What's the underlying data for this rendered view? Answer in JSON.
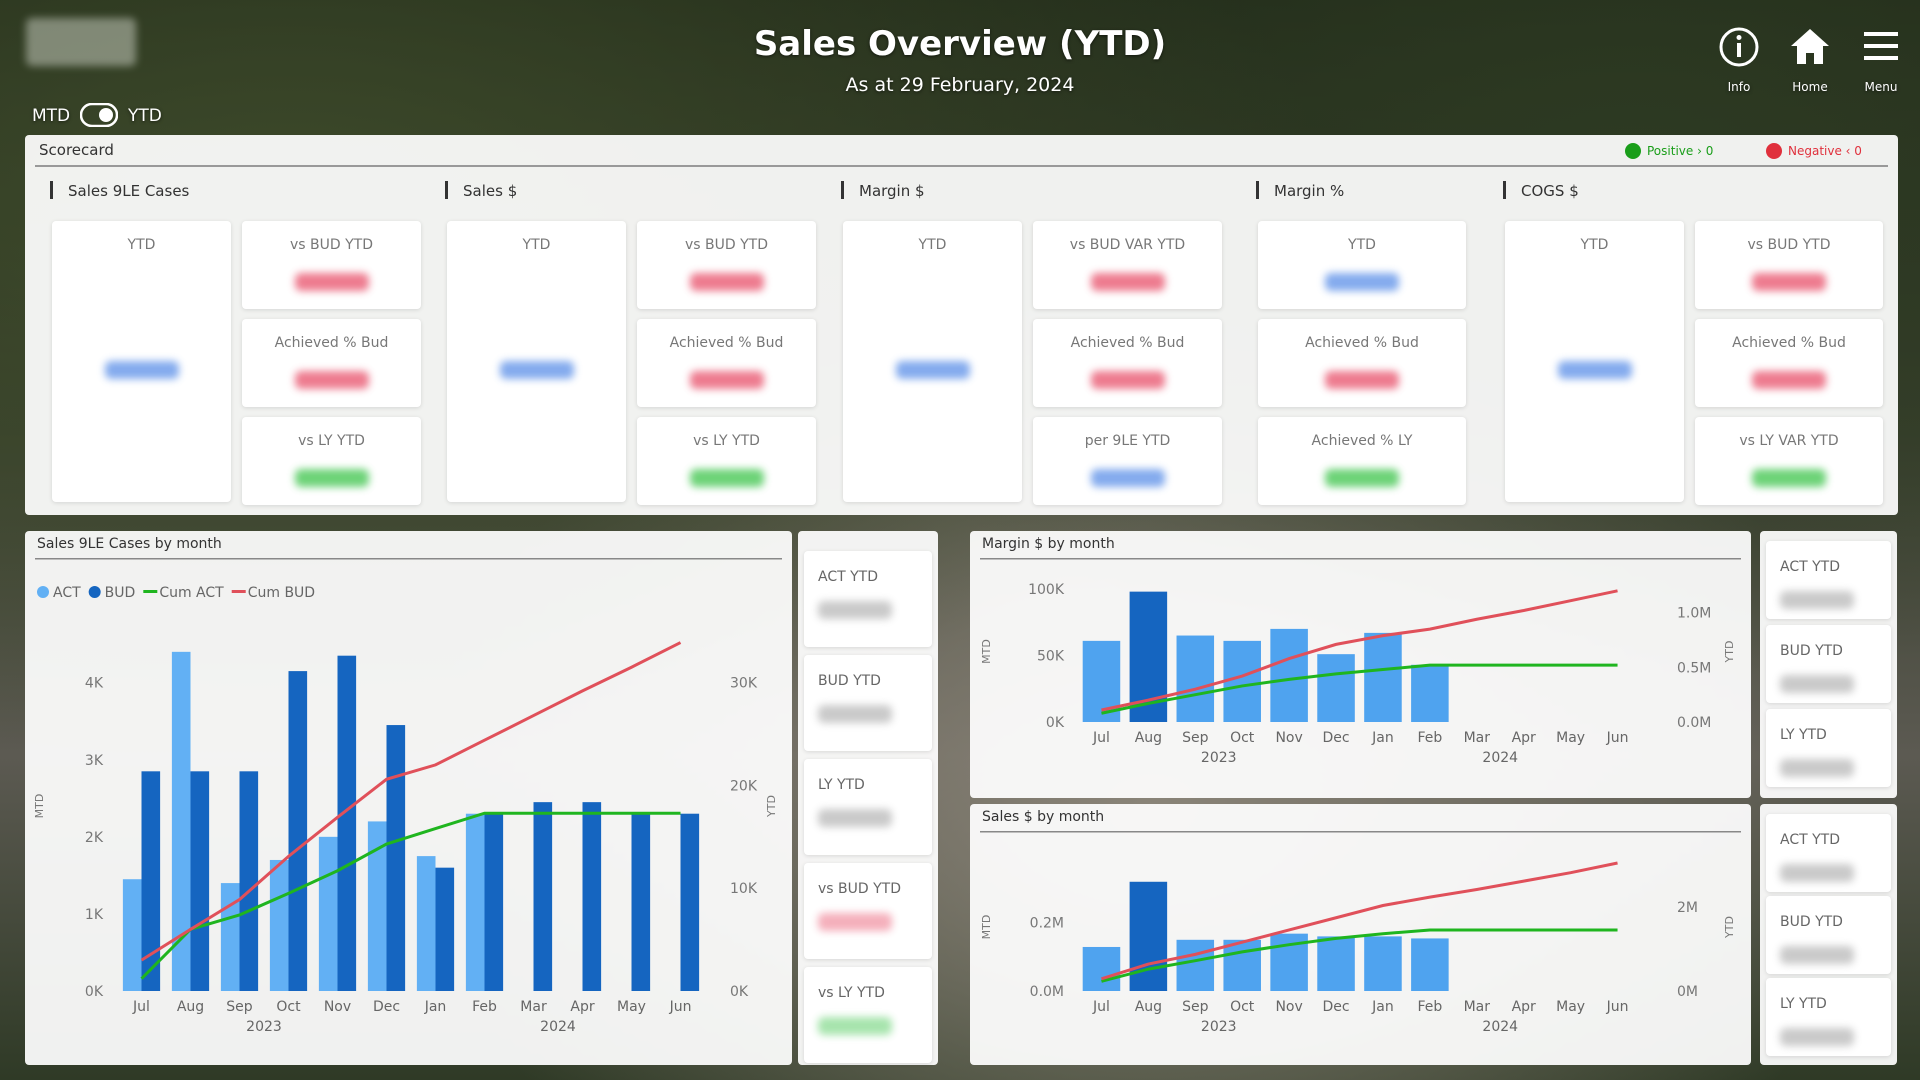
{
  "header": {
    "title": "Sales Overview (YTD)",
    "subtitle": "As at 29 February, 2024",
    "toggle": [
      "MTD",
      "YTD"
    ],
    "nav": [
      "Info",
      "Home",
      "Menu"
    ]
  },
  "scorecard": {
    "title": "Scorecard",
    "legend": [
      {
        "label": "Positive › 0",
        "color": "#1a9e1a"
      },
      {
        "label": "Negative ‹ 0",
        "color": "#e0303c"
      }
    ],
    "groups": [
      {
        "title": "Sales 9LE Cases",
        "tiles": [
          "YTD",
          "vs BUD YTD",
          "Achieved % Bud",
          "vs LY YTD"
        ]
      },
      {
        "title": "Sales $",
        "tiles": [
          "YTD",
          "vs BUD YTD",
          "Achieved % Bud",
          "vs LY YTD"
        ]
      },
      {
        "title": "Margin $",
        "tiles": [
          "YTD",
          "vs BUD VAR YTD",
          "Achieved % Bud",
          "per 9LE YTD"
        ]
      },
      {
        "title": "Margin %",
        "tiles": [
          "YTD",
          "Achieved % Bud",
          "Achieved % LY"
        ]
      },
      {
        "title": "COGS $",
        "tiles": [
          "YTD",
          "vs BUD YTD",
          "Achieved % Bud",
          "vs LY VAR YTD"
        ]
      }
    ]
  },
  "kpi_panels": [
    [
      "ACT YTD",
      "BUD YTD",
      "LY YTD",
      "vs BUD YTD",
      "vs LY YTD"
    ],
    [
      "ACT YTD",
      "BUD YTD",
      "LY YTD"
    ],
    [
      "ACT YTD",
      "BUD YTD",
      "LY YTD"
    ]
  ],
  "chart_data": [
    {
      "type": "combo",
      "title": "Sales 9LE Cases by month",
      "y_label": "MTD",
      "y2_label": "YTD",
      "legend": true,
      "category_groups": [
        {
          "label": "2023",
          "months": [
            "Jul",
            "Aug",
            "Sep",
            "Oct",
            "Nov",
            "Dec"
          ]
        },
        {
          "label": "2024",
          "months": [
            "Jan",
            "Feb",
            "Mar",
            "Apr",
            "May",
            "Jun"
          ]
        }
      ],
      "series": [
        {
          "name": "ACT",
          "color": "#62b0f4",
          "values": [
            1450,
            4400,
            1400,
            1700,
            2000,
            2200,
            1750,
            2300,
            null,
            null,
            null,
            null
          ]
        },
        {
          "name": "BUD",
          "color": "#1565c0",
          "values": [
            2850,
            2850,
            2850,
            4150,
            4350,
            3450,
            1600,
            2300,
            2450,
            2450,
            2300,
            2300
          ]
        },
        {
          "name": "Cum ACT",
          "color": "#1fb51f",
          "type": "line",
          "axis": "y2",
          "values": [
            1200,
            6000,
            7400,
            9500,
            11700,
            14300,
            15800,
            17300,
            17300,
            17300,
            17300,
            17300
          ]
        },
        {
          "name": "Cum BUD",
          "color": "#e0505a",
          "type": "line",
          "axis": "y2",
          "values": [
            3000,
            6000,
            8900,
            13100,
            16900,
            20600,
            22000,
            24400,
            26800,
            29200,
            31500,
            33900
          ]
        }
      ],
      "ylim": [
        0,
        4800
      ],
      "yticks": [
        {
          "value": 0,
          "label": "0K"
        },
        {
          "value": 1000,
          "label": "1K"
        },
        {
          "value": 2000,
          "label": "2K"
        },
        {
          "value": 3000,
          "label": "3K"
        },
        {
          "value": 4000,
          "label": "4K"
        }
      ],
      "y2lim": [
        0,
        36000
      ],
      "y2ticks": [
        {
          "value": 0,
          "label": "0K"
        },
        {
          "value": 10000,
          "label": "10K"
        },
        {
          "value": 20000,
          "label": "20K"
        },
        {
          "value": 30000,
          "label": "30K"
        }
      ]
    },
    {
      "type": "combo",
      "title": "Margin $ by month",
      "y_label": "MTD",
      "y2_label": "YTD",
      "legend": false,
      "category_groups": [
        {
          "label": "2023",
          "months": [
            "Jul",
            "Aug",
            "Sep",
            "Oct",
            "Nov",
            "Dec"
          ]
        },
        {
          "label": "2024",
          "months": [
            "Jan",
            "Feb",
            "Mar",
            "Apr",
            "May",
            "Jun"
          ]
        }
      ],
      "series": [
        {
          "colors": [
            "#4fa3ef",
            "#1565c0",
            "#4fa3ef",
            "#4fa3ef",
            "#4fa3ef",
            "#4fa3ef",
            "#4fa3ef",
            "#4fa3ef",
            "#4fa3ef",
            "#4fa3ef",
            "#4fa3ef",
            "#4fa3ef"
          ],
          "values": [
            61000,
            98000,
            65000,
            61000,
            70000,
            51000,
            67000,
            43000,
            null,
            null,
            null,
            null
          ]
        },
        {
          "color": "#1fb51f",
          "type": "line",
          "axis": "y2",
          "values": [
            80000,
            170000,
            250000,
            330000,
            390000,
            440000,
            480000,
            520000,
            520000,
            520000,
            520000,
            520000
          ]
        },
        {
          "color": "#e0505a",
          "type": "line",
          "axis": "y2",
          "values": [
            110000,
            200000,
            300000,
            420000,
            580000,
            710000,
            790000,
            850000,
            940000,
            1020000,
            1110000,
            1200000
          ]
        }
      ],
      "ylim": [
        0,
        106000
      ],
      "yticks": [
        {
          "value": 0,
          "label": "0K"
        },
        {
          "value": 50000,
          "label": "50K"
        },
        {
          "value": 100000,
          "label": "100K"
        }
      ],
      "y2lim": [
        0,
        1290000
      ],
      "y2ticks": [
        {
          "value": 0,
          "label": "0.0M"
        },
        {
          "value": 500000,
          "label": "0.5M"
        },
        {
          "value": 1000000,
          "label": "1.0M"
        }
      ]
    },
    {
      "type": "combo",
      "title": "Sales $ by month",
      "y_label": "MTD",
      "y2_label": "YTD",
      "legend": false,
      "category_groups": [
        {
          "label": "2023",
          "months": [
            "Jul",
            "Aug",
            "Sep",
            "Oct",
            "Nov",
            "Dec"
          ]
        },
        {
          "label": "2024",
          "months": [
            "Jan",
            "Feb",
            "Mar",
            "Apr",
            "May",
            "Jun"
          ]
        }
      ],
      "series": [
        {
          "colors": [
            "#4fa3ef",
            "#1565c0",
            "#4fa3ef",
            "#4fa3ef",
            "#4fa3ef",
            "#4fa3ef",
            "#4fa3ef",
            "#4fa3ef",
            "#4fa3ef",
            "#4fa3ef",
            "#4fa3ef",
            "#4fa3ef"
          ],
          "values": [
            129000,
            320000,
            150000,
            150000,
            168000,
            160000,
            160000,
            154000,
            null,
            null,
            null,
            null
          ]
        },
        {
          "color": "#1fb51f",
          "type": "line",
          "axis": "y2",
          "values": [
            230000,
            520000,
            720000,
            930000,
            1100000,
            1250000,
            1360000,
            1450000,
            1450000,
            1450000,
            1450000,
            1450000
          ]
        },
        {
          "color": "#e0505a",
          "type": "line",
          "axis": "y2",
          "values": [
            290000,
            640000,
            870000,
            1160000,
            1450000,
            1740000,
            2030000,
            2230000,
            2410000,
            2610000,
            2810000,
            3040000
          ]
        }
      ],
      "ylim": [
        0,
        375000
      ],
      "yticks": [
        {
          "value": 0,
          "label": "0.0M"
        },
        {
          "value": 200000,
          "label": "0.2M"
        }
      ],
      "y2lim": [
        0,
        3040000
      ],
      "y2ticks": [
        {
          "value": 0,
          "label": "0M"
        },
        {
          "value": 2000000,
          "label": "2M"
        }
      ]
    }
  ]
}
